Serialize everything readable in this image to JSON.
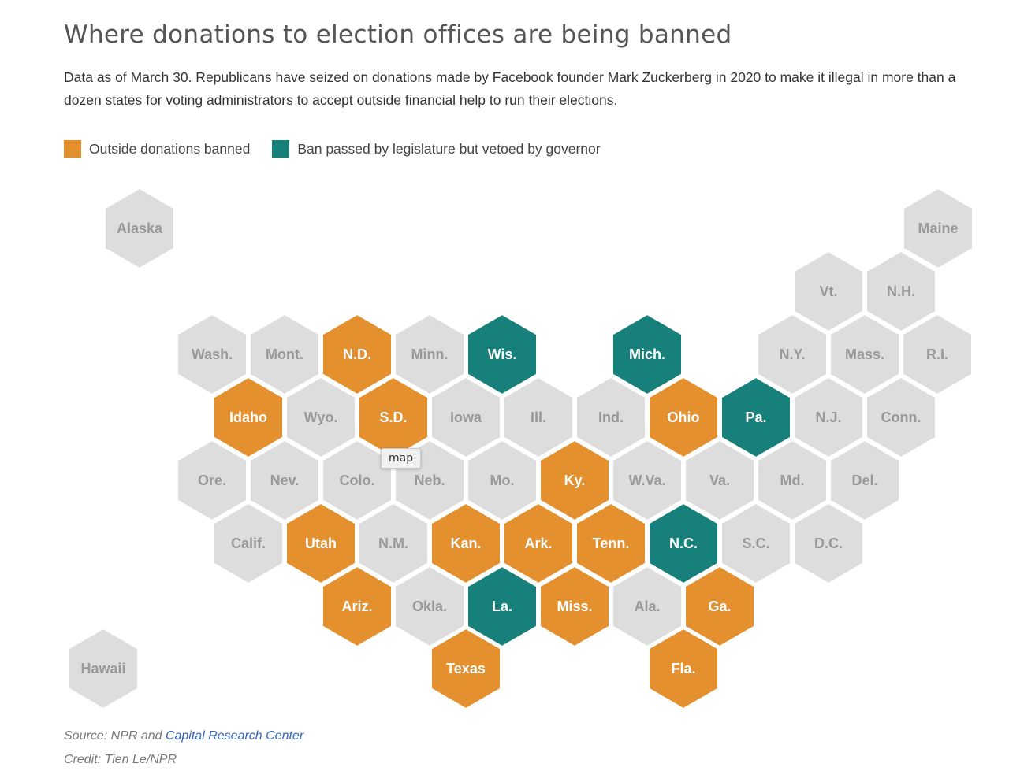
{
  "title": "Where donations to election offices are being banned",
  "subtitle": "Data as of March 30. Republicans have seized on donations made by Facebook founder Mark Zuckerberg in 2020 to make it illegal in more than a dozen states for voting administrators to accept outside financial help to run their elections.",
  "legend": [
    {
      "key": "banned",
      "label": "Outside donations banned",
      "color": "#e5902e"
    },
    {
      "key": "vetoed",
      "label": "Ban passed by legislature but vetoed by governor",
      "color": "#17807a"
    }
  ],
  "colors": {
    "none": "#dddddd",
    "banned": "#e5902e",
    "vetoed": "#17807a",
    "label_dark": "#999999",
    "label_light": "#ffffff"
  },
  "tooltip": "map",
  "source": {
    "prefix": "Source: NPR and ",
    "link_text": "Capital Research Center"
  },
  "credit": "Credit: Tien Le/NPR",
  "states": [
    {
      "name": "Alaska",
      "status": "none"
    },
    {
      "name": "Maine",
      "status": "none"
    },
    {
      "name": "Vt.",
      "status": "none"
    },
    {
      "name": "N.H.",
      "status": "none"
    },
    {
      "name": "Wash.",
      "status": "none"
    },
    {
      "name": "Mont.",
      "status": "none"
    },
    {
      "name": "N.D.",
      "status": "banned"
    },
    {
      "name": "Minn.",
      "status": "none"
    },
    {
      "name": "Wis.",
      "status": "vetoed"
    },
    {
      "name": "Mich.",
      "status": "vetoed"
    },
    {
      "name": "N.Y.",
      "status": "none"
    },
    {
      "name": "Mass.",
      "status": "none"
    },
    {
      "name": "R.I.",
      "status": "none"
    },
    {
      "name": "Idaho",
      "status": "banned"
    },
    {
      "name": "Wyo.",
      "status": "none"
    },
    {
      "name": "S.D.",
      "status": "banned"
    },
    {
      "name": "Iowa",
      "status": "none"
    },
    {
      "name": "Ill.",
      "status": "none"
    },
    {
      "name": "Ind.",
      "status": "none"
    },
    {
      "name": "Ohio",
      "status": "banned"
    },
    {
      "name": "Pa.",
      "status": "vetoed"
    },
    {
      "name": "N.J.",
      "status": "none"
    },
    {
      "name": "Conn.",
      "status": "none"
    },
    {
      "name": "Ore.",
      "status": "none"
    },
    {
      "name": "Nev.",
      "status": "none"
    },
    {
      "name": "Colo.",
      "status": "none"
    },
    {
      "name": "Neb.",
      "status": "none"
    },
    {
      "name": "Mo.",
      "status": "none"
    },
    {
      "name": "Ky.",
      "status": "banned"
    },
    {
      "name": "W.Va.",
      "status": "none"
    },
    {
      "name": "Va.",
      "status": "none"
    },
    {
      "name": "Md.",
      "status": "none"
    },
    {
      "name": "Del.",
      "status": "none"
    },
    {
      "name": "Calif.",
      "status": "none"
    },
    {
      "name": "Utah",
      "status": "banned"
    },
    {
      "name": "N.M.",
      "status": "none"
    },
    {
      "name": "Kan.",
      "status": "banned"
    },
    {
      "name": "Ark.",
      "status": "banned"
    },
    {
      "name": "Tenn.",
      "status": "banned"
    },
    {
      "name": "N.C.",
      "status": "vetoed"
    },
    {
      "name": "S.C.",
      "status": "none"
    },
    {
      "name": "D.C.",
      "status": "none"
    },
    {
      "name": "Ariz.",
      "status": "banned"
    },
    {
      "name": "Okla.",
      "status": "none"
    },
    {
      "name": "La.",
      "status": "vetoed"
    },
    {
      "name": "Miss.",
      "status": "banned"
    },
    {
      "name": "Ala.",
      "status": "none"
    },
    {
      "name": "Ga.",
      "status": "banned"
    },
    {
      "name": "Hawaii",
      "status": "none"
    },
    {
      "name": "Texas",
      "status": "banned"
    },
    {
      "name": "Fla.",
      "status": "banned"
    }
  ]
}
